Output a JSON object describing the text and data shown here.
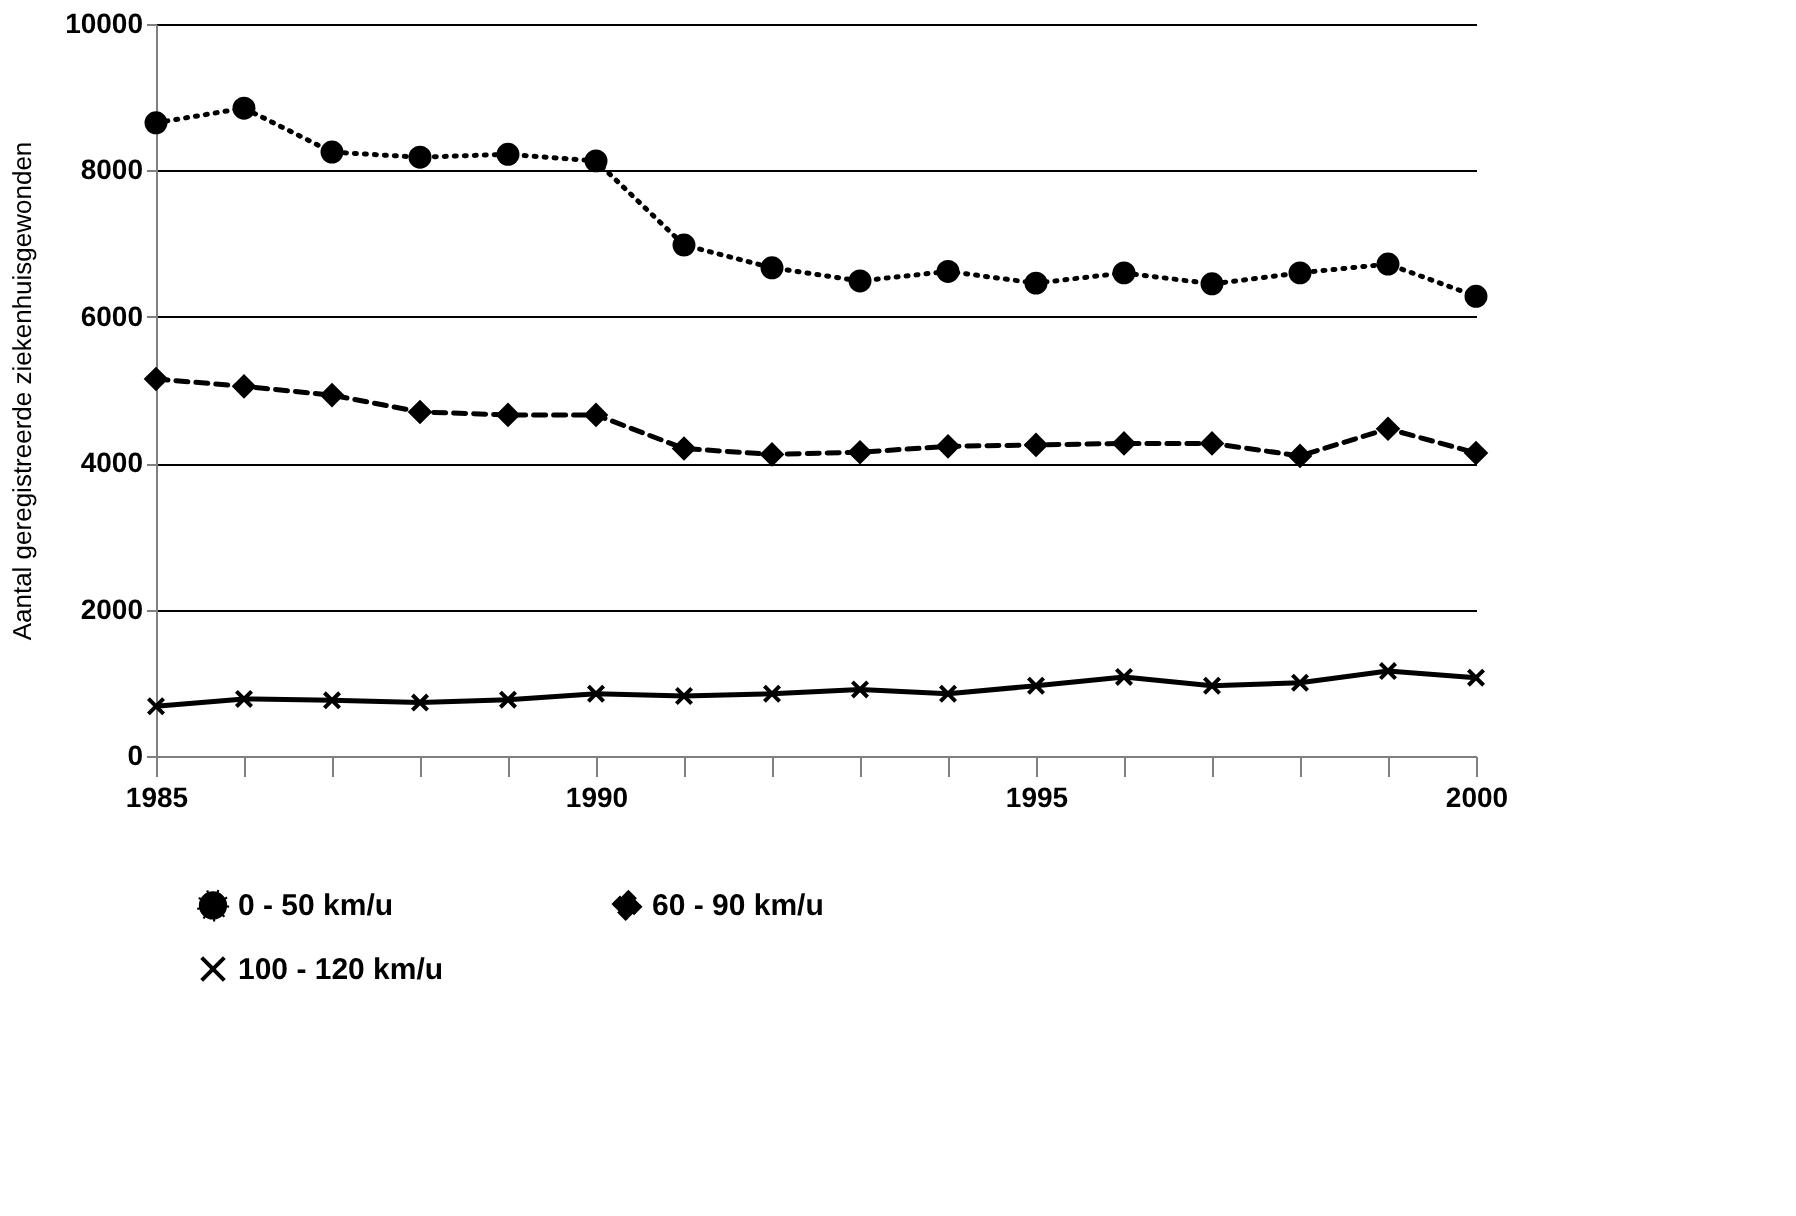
{
  "chart_data": {
    "type": "line",
    "ylabel": "Aantal geregistreerde ziekenhuisgewonden",
    "x": [
      1985,
      1986,
      1987,
      1988,
      1989,
      1990,
      1991,
      1992,
      1993,
      1994,
      1995,
      1996,
      1997,
      1998,
      1999,
      2000
    ],
    "xlim": [
      1985,
      2000
    ],
    "xticks": [
      1985,
      {
        "value": 1986,
        "label": null
      },
      {
        "value": 1987,
        "label": null
      },
      {
        "value": 1988,
        "label": null
      },
      {
        "value": 1989,
        "label": null
      },
      1990,
      {
        "value": 1991,
        "label": null
      },
      {
        "value": 1992,
        "label": null
      },
      {
        "value": 1993,
        "label": null
      },
      {
        "value": 1994,
        "label": null
      },
      1995,
      {
        "value": 1996,
        "label": null
      },
      {
        "value": 1997,
        "label": null
      },
      {
        "value": 1998,
        "label": null
      },
      {
        "value": 1999,
        "label": null
      },
      2000
    ],
    "ylim": [
      0,
      10000
    ],
    "yticks": [
      0,
      2000,
      4000,
      6000,
      8000,
      10000
    ],
    "grid": "y",
    "legend": "bottom",
    "series": [
      {
        "name": "0 - 50 km/u",
        "color": "#000000",
        "line_style": "dotted",
        "marker": "circle",
        "values": [
          8650,
          8850,
          8250,
          8180,
          8220,
          8130,
          6980,
          6670,
          6490,
          6620,
          6460,
          6600,
          6450,
          6600,
          6720,
          6280
        ]
      },
      {
        "name": "60 - 90 km/u",
        "color": "#000000",
        "line_style": "dashed",
        "marker": "diamond",
        "values": [
          5150,
          5050,
          4930,
          4700,
          4660,
          4660,
          4200,
          4120,
          4150,
          4230,
          4250,
          4270,
          4270,
          4100,
          4470,
          4140
        ]
      },
      {
        "name": "100 - 120 km/u",
        "color": "#000000",
        "line_style": "solid",
        "marker": "cross",
        "values": [
          680,
          780,
          760,
          730,
          770,
          850,
          820,
          850,
          910,
          850,
          960,
          1080,
          960,
          1000,
          1160,
          1070
        ]
      }
    ]
  }
}
